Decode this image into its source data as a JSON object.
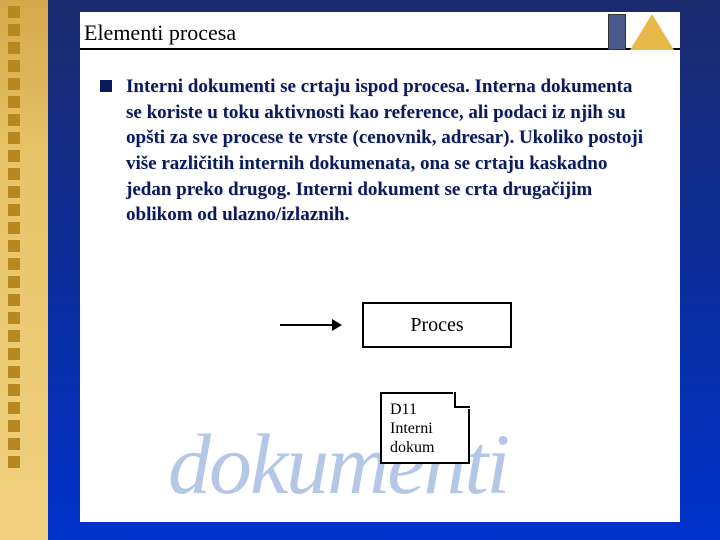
{
  "slide": {
    "title": "Elementi procesa",
    "bullet_text": "Interni dokumenti se crtaju ispod procesa. Interna dokumenta se koriste u toku aktivnosti kao reference, ali podaci iz njih su opšti za sve procese te vrste (cenovnik, adresar). Ukoliko postoji više različitih internih dokumenata, ona se crtaju kaskadno jedan preko drugog. Interni dokument se crta drugačijim oblikom od ulazno/izlaznih.",
    "diagram": {
      "process_label": "Proces",
      "doc_line1": "D11",
      "doc_line2": "Interni",
      "doc_line3": "dokum"
    },
    "watermark": "dokumenti"
  },
  "colors": {
    "bg_top": "#1a2a6c",
    "bg_bottom": "#0033cc",
    "sidebar": "#e8c468",
    "sidebar_square": "#b88820",
    "text": "#0a1a5a",
    "watermark": "rgba(90,130,200,0.45)"
  },
  "sidebar_squares_count": 26
}
